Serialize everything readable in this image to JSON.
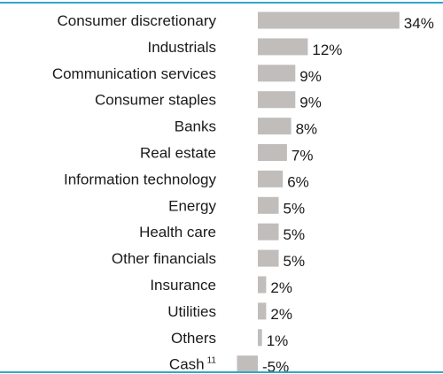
{
  "chart_data": {
    "type": "bar",
    "orientation": "horizontal",
    "categories": [
      "Consumer discretionary",
      "Industrials",
      "Communication services",
      "Consumer staples",
      "Banks",
      "Real estate",
      "Information technology",
      "Energy",
      "Health care",
      "Other financials",
      "Insurance",
      "Utilities",
      "Others",
      "Cash"
    ],
    "values": [
      34,
      12,
      9,
      9,
      8,
      7,
      6,
      5,
      5,
      5,
      2,
      2,
      1,
      -5
    ],
    "value_labels": [
      "34%",
      "12%",
      "9%",
      "9%",
      "8%",
      "7%",
      "6%",
      "5%",
      "5%",
      "5%",
      "2%",
      "2%",
      "1%",
      "-5%"
    ],
    "footnotes": {
      "Cash": "11"
    },
    "colors": {
      "bar": "#c0bdbb",
      "rule": "#2fa8c7"
    }
  }
}
